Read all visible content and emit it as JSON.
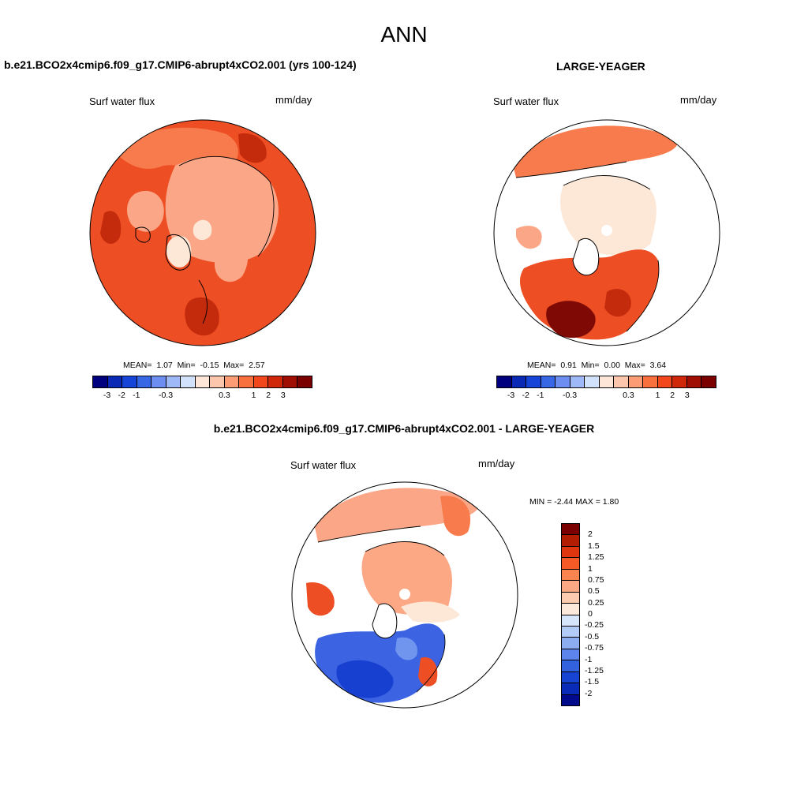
{
  "page_title": "ANN",
  "panels": [
    {
      "case_title": "b.e21.BCO2x4cmip6.f09_g17.CMIP6-abrupt4xCO2.001 (yrs 100-124)",
      "variable": "Surf water flux",
      "units": "mm/day",
      "stats": {
        "mean_label": "MEAN=",
        "mean": "1.07",
        "min_label": "Min=",
        "min": "-0.15",
        "max_label": "Max=",
        "max": "2.57"
      }
    },
    {
      "case_title": "LARGE-YEAGER",
      "variable": "Surf water flux",
      "units": "mm/day",
      "stats": {
        "mean_label": "MEAN=",
        "mean": "0.91",
        "min_label": "Min=",
        "min": "0.00",
        "max_label": "Max=",
        "max": "3.64"
      }
    }
  ],
  "colorbar_abs": {
    "colors": [
      "#00007f",
      "#0a2ab5",
      "#1744d8",
      "#3867e6",
      "#6b8ef0",
      "#9fb8f7",
      "#d3e2fb",
      "#fde6d7",
      "#fcc6ac",
      "#fb9c74",
      "#f9703f",
      "#f2461c",
      "#d0270a",
      "#a00d02",
      "#7a0000"
    ],
    "tick_labels": [
      "-3",
      "-2",
      "-1",
      "-0.3",
      "0.3",
      "1",
      "2",
      "3"
    ]
  },
  "diff_panel": {
    "case_title": "b.e21.BCO2x4cmip6.f09_g17.CMIP6-abrupt4xCO2.001 - LARGE-YEAGER",
    "variable": "Surf water flux",
    "units": "mm/day",
    "minmax_label": "MIN =  -2.44 MAX =   1.80"
  },
  "colorbar_diff": {
    "colors": [
      "#7a0000",
      "#b31d02",
      "#e0360f",
      "#f55a27",
      "#fa8450",
      "#fca884",
      "#fdcbb0",
      "#fde8dc",
      "#d7e5fb",
      "#b3ccf7",
      "#8dadf1",
      "#5c84ea",
      "#3262de",
      "#1844d4",
      "#0a2ab8",
      "#000a8a"
    ],
    "tick_labels": [
      "2",
      "1.5",
      "1.25",
      "1",
      "0.75",
      "0.5",
      "0.25",
      "0",
      "-0.25",
      "-0.5",
      "-0.75",
      "-1",
      "-1.25",
      "-1.5",
      "-2"
    ]
  },
  "map_colors": {
    "deep_red": "#7f0a05",
    "dark_red": "#c42a0c",
    "red": "#ee4e23",
    "orange": "#f77b4c",
    "salmon": "#fba787",
    "light_salmon": "#fdcbb0",
    "pale": "#fde8d8",
    "light_blue": "#c9dcf8",
    "mid_blue": "#6f95ee",
    "blue": "#3b63e2",
    "dark_blue": "#173fd0"
  }
}
